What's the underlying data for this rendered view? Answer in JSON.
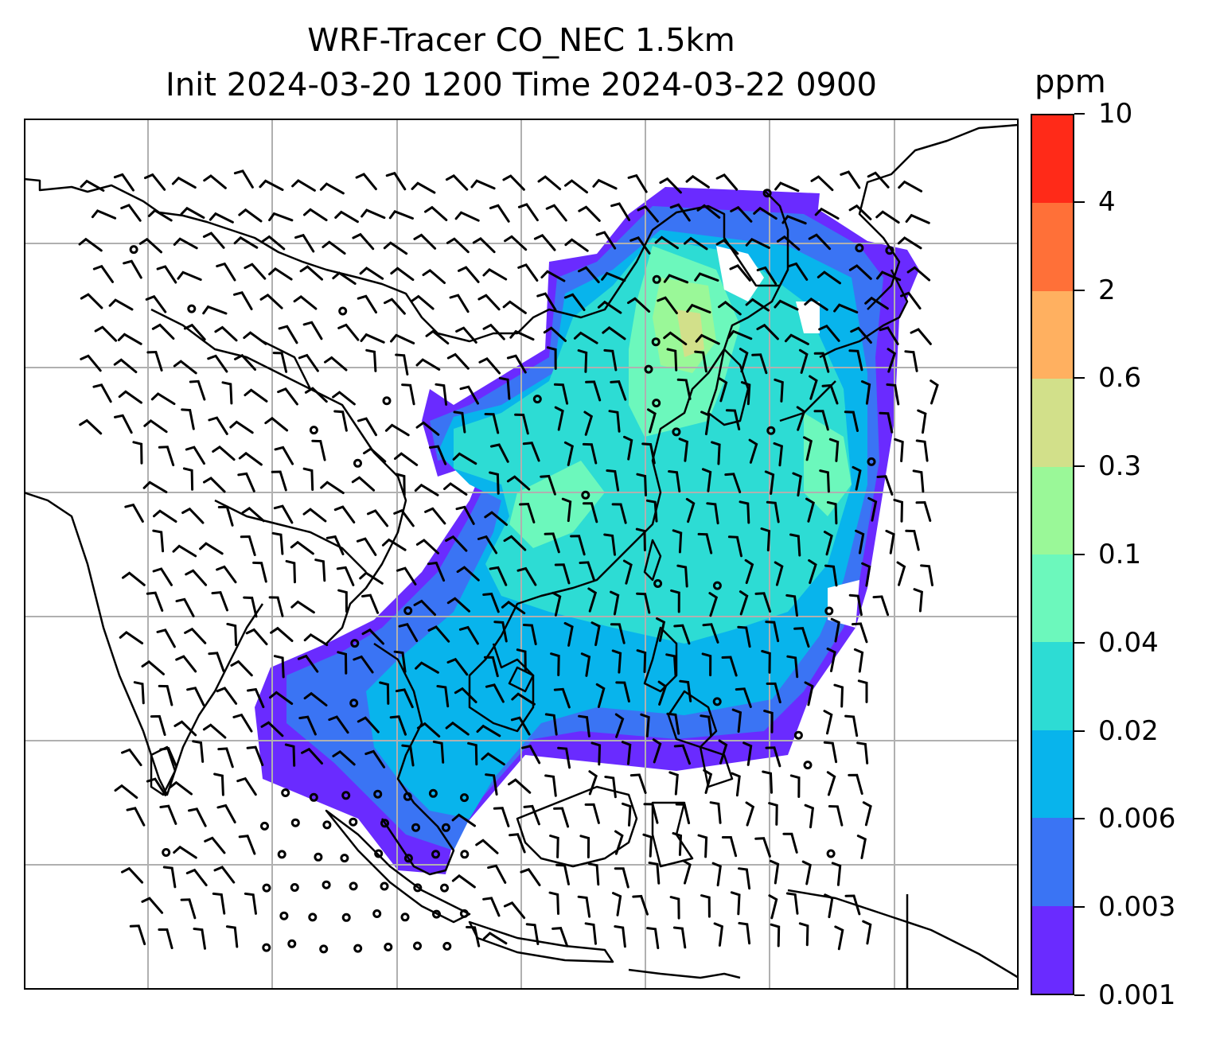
{
  "title": {
    "line1": "WRF-Tracer CO_NEC 1.5km",
    "line2": "Init 2024-03-20 1200 Time 2024-03-22 0900"
  },
  "colorbar": {
    "unit": "ppm",
    "tick_labels": [
      "0.001",
      "0.003",
      "0.006",
      "0.02",
      "0.04",
      "0.1",
      "0.3",
      "0.6",
      "2",
      "4",
      "10"
    ],
    "levels": [
      0.001,
      0.003,
      0.006,
      0.02,
      0.04,
      0.1,
      0.3,
      0.6,
      2,
      4,
      10
    ],
    "colors": [
      "#6a2bff",
      "#3a74f4",
      "#08b4ec",
      "#2ddcd4",
      "#6cf8bc",
      "#9af898",
      "#d2e08a",
      "#ffb060",
      "#ff7038",
      "#ff2a18"
    ]
  },
  "map": {
    "gridlines": true,
    "coastline_color": "#000000",
    "grid_color": "#b0b0b0",
    "wind_symbol": "wind barbs",
    "calm_symbol": "calm circle"
  }
}
